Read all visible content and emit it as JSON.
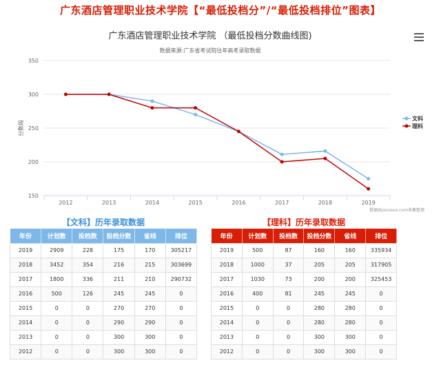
{
  "page_title": "广东酒店管理职业技术学院【“最低投档分”/“最低投档排位”图表】",
  "chart_data": {
    "type": "line",
    "title": "广东酒店管理职业技术学院 （最低投档分数曲线图)",
    "subtitle": "数据来源:广东省考试院往年高考录取数据",
    "ylabel": "分数段",
    "xlabel": "",
    "categories": [
      "2012",
      "2013",
      "2014",
      "2015",
      "2016",
      "2017",
      "2018",
      "2019"
    ],
    "ylim": [
      150,
      350
    ],
    "yticks": [
      "150",
      "200",
      "250",
      "300",
      "350"
    ],
    "grid": true,
    "legend_position": "right",
    "credit": "数据由zexiaoe.com收集整理",
    "series": [
      {
        "name": "文科",
        "color": "#7cb5ec",
        "values": [
          300,
          300,
          290,
          270,
          245,
          211,
          216,
          175
        ]
      },
      {
        "name": "理科",
        "color": "#c00000",
        "values": [
          300,
          300,
          280,
          280,
          245,
          200,
          205,
          160
        ]
      }
    ]
  },
  "tables": {
    "wen": {
      "title": "【文科】历年录取数据",
      "headers": [
        "年份",
        "计划数",
        "投档数",
        "投档分数",
        "省线",
        "排位"
      ],
      "rows": [
        [
          "2019",
          "2909",
          "228",
          "175",
          "170",
          "305217"
        ],
        [
          "2018",
          "3452",
          "354",
          "216",
          "215",
          "303699"
        ],
        [
          "2017",
          "1800",
          "336",
          "211",
          "210",
          "290732"
        ],
        [
          "2016",
          "500",
          "126",
          "245",
          "245",
          "0"
        ],
        [
          "2015",
          "0",
          "0",
          "270",
          "270",
          "0"
        ],
        [
          "2014",
          "0",
          "0",
          "290",
          "290",
          "0"
        ],
        [
          "2013",
          "0",
          "0",
          "300",
          "300",
          "0"
        ],
        [
          "2012",
          "0",
          "0",
          "300",
          "300",
          "0"
        ]
      ]
    },
    "li": {
      "title": "【理科】历年录取数据",
      "headers": [
        "年份",
        "计划数",
        "投档数",
        "投档分数",
        "省线",
        "排位"
      ],
      "rows": [
        [
          "2019",
          "500",
          "87",
          "160",
          "160",
          "335934"
        ],
        [
          "2018",
          "1000",
          "37",
          "205",
          "205",
          "317905"
        ],
        [
          "2017",
          "1030",
          "73",
          "200",
          "200",
          "325453"
        ],
        [
          "2016",
          "400",
          "81",
          "245",
          "245",
          "0"
        ],
        [
          "2015",
          "0",
          "0",
          "280",
          "280",
          "0"
        ],
        [
          "2014",
          "0",
          "0",
          "280",
          "280",
          "0"
        ],
        [
          "2013",
          "0",
          "0",
          "300",
          "300",
          "0"
        ],
        [
          "2012",
          "0",
          "0",
          "300",
          "300",
          "0"
        ]
      ]
    }
  }
}
